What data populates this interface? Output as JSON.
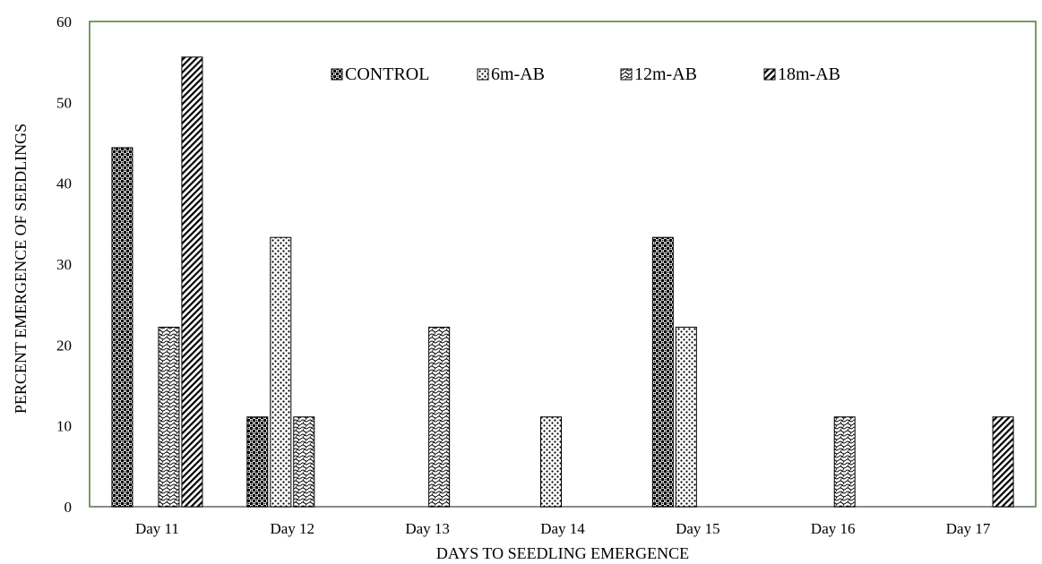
{
  "chart_data": {
    "type": "bar",
    "title": "",
    "xlabel": "DAYS TO SEEDLING EMERGENCE",
    "ylabel": "PERCENT EMERGENCE OF SEEDLINGS",
    "ylim": [
      0,
      60
    ],
    "yticks": [
      "0",
      "10",
      "20",
      "30",
      "40",
      "50",
      "60"
    ],
    "grid": false,
    "legend_position": "top",
    "categories": [
      "Day 11",
      "Day 12",
      "Day 13",
      "Day 14",
      "Day 15",
      "Day 16",
      "Day 17"
    ],
    "series": [
      {
        "name": "CONTROL",
        "pattern": "checker",
        "values": [
          44.4,
          11.1,
          0,
          0,
          33.3,
          0,
          0
        ]
      },
      {
        "name": "6m-AB",
        "pattern": "dots",
        "values": [
          0,
          33.3,
          0,
          11.1,
          22.2,
          0,
          0
        ]
      },
      {
        "name": "12m-AB",
        "pattern": "wave",
        "values": [
          22.2,
          11.1,
          22.2,
          0,
          0,
          11.1,
          0
        ]
      },
      {
        "name": "18m-AB",
        "pattern": "diagonal",
        "values": [
          55.6,
          0,
          0,
          0,
          0,
          0,
          11.1
        ]
      }
    ],
    "colors": {
      "plot_border": "#4f7a28",
      "bar_outline": "#000000",
      "axis": "#7f7f7f"
    }
  }
}
